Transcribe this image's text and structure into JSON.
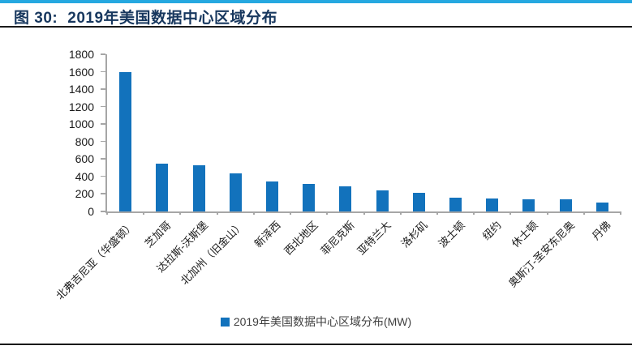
{
  "header": {
    "figure_label": "图 30:",
    "title": "2019年美国数据中心区域分布"
  },
  "chart_data": {
    "type": "bar",
    "title": "2019年美国数据中心区域分布",
    "legend_label": "2019年美国数据中心区域分布(MW)",
    "legend_position": "bottom",
    "unit": "MW",
    "grid": false,
    "categories": [
      "北弗吉尼亚（华盛顿）",
      "芝加哥",
      "达拉斯-沃斯堡",
      "北加州（旧金山）",
      "新泽西",
      "西北地区",
      "菲尼克斯",
      "亚特兰大",
      "洛杉矶",
      "波士顿",
      "纽约",
      "休士顿",
      "奥斯汀-圣安东尼奥",
      "丹佛"
    ],
    "values": [
      1600,
      550,
      530,
      440,
      340,
      315,
      285,
      240,
      210,
      160,
      150,
      140,
      140,
      105
    ],
    "ylim": [
      0,
      1800
    ],
    "ytick_step": 200,
    "yticks": [
      0,
      200,
      400,
      600,
      800,
      1000,
      1200,
      1400,
      1600,
      1800
    ],
    "xlabel": "",
    "ylabel": ""
  },
  "colors": {
    "accent_bar": "#25A8E0",
    "title_text": "#17375E",
    "bar": "#1272BC",
    "axis": "#A6A6A6",
    "divider": "#1a1a1a"
  }
}
